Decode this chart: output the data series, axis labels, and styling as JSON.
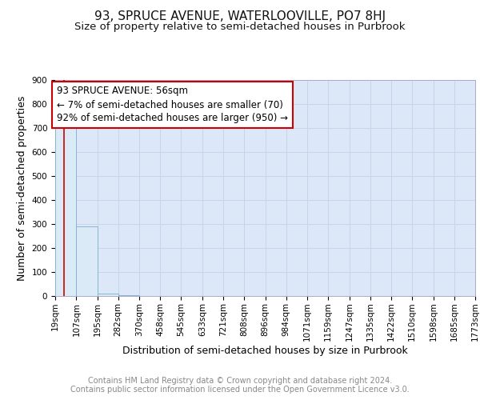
{
  "title": "93, SPRUCE AVENUE, WATERLOOVILLE, PO7 8HJ",
  "subtitle": "Size of property relative to semi-detached houses in Purbrook",
  "xlabel": "Distribution of semi-detached houses by size in Purbrook",
  "ylabel": "Number of semi-detached properties",
  "bin_edges": [
    19,
    107,
    195,
    282,
    370,
    458,
    545,
    633,
    721,
    808,
    896,
    984,
    1071,
    1159,
    1247,
    1335,
    1422,
    1510,
    1598,
    1685,
    1773
  ],
  "bar_heights": [
    750,
    290,
    10,
    2,
    1,
    0,
    0,
    0,
    0,
    0,
    0,
    0,
    0,
    0,
    0,
    0,
    0,
    0,
    0,
    0
  ],
  "bar_color": "#daeaf7",
  "bar_edgecolor": "#8ab4d4",
  "property_size": 56,
  "red_line_color": "#cc0000",
  "annotation_line1": "93 SPRUCE AVENUE: 56sqm",
  "annotation_line2": "← 7% of semi-detached houses are smaller (70)",
  "annotation_line3": "92% of semi-detached houses are larger (950) →",
  "annotation_box_edgecolor": "#cc0000",
  "annotation_box_facecolor": "#ffffff",
  "ylim": [
    0,
    900
  ],
  "yticks": [
    0,
    100,
    200,
    300,
    400,
    500,
    600,
    700,
    800,
    900
  ],
  "grid_color": "#c8d4e8",
  "background_color": "#dce8f8",
  "footer_text": "Contains HM Land Registry data © Crown copyright and database right 2024.\nContains public sector information licensed under the Open Government Licence v3.0.",
  "title_fontsize": 11,
  "subtitle_fontsize": 9.5,
  "axis_label_fontsize": 9,
  "tick_fontsize": 7.5,
  "annotation_fontsize": 8.5,
  "footer_fontsize": 7
}
